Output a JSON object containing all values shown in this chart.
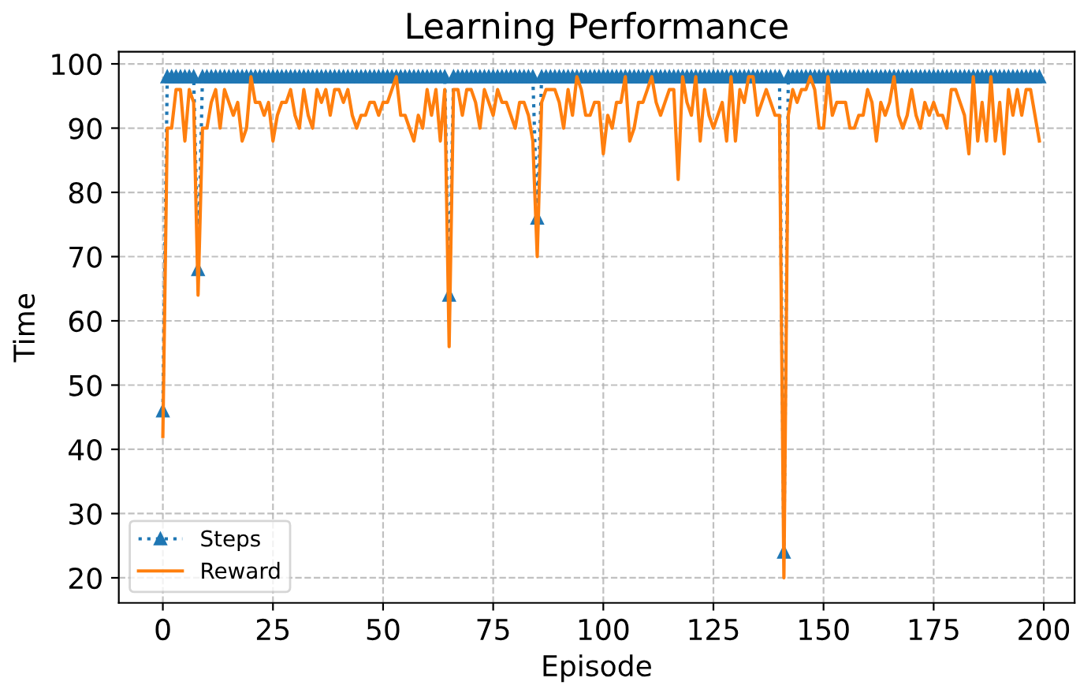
{
  "chart_data": {
    "type": "line",
    "title": "Learning Performance",
    "xlabel": "Episode",
    "ylabel": "Time",
    "x": [
      0,
      1,
      2,
      3,
      4,
      5,
      6,
      7,
      8,
      9,
      10,
      11,
      12,
      13,
      14,
      15,
      16,
      17,
      18,
      19,
      20,
      21,
      22,
      23,
      24,
      25,
      26,
      27,
      28,
      29,
      30,
      31,
      32,
      33,
      34,
      35,
      36,
      37,
      38,
      39,
      40,
      41,
      42,
      43,
      44,
      45,
      46,
      47,
      48,
      49,
      50,
      51,
      52,
      53,
      54,
      55,
      56,
      57,
      58,
      59,
      60,
      61,
      62,
      63,
      64,
      65,
      66,
      67,
      68,
      69,
      70,
      71,
      72,
      73,
      74,
      75,
      76,
      77,
      78,
      79,
      80,
      81,
      82,
      83,
      84,
      85,
      86,
      87,
      88,
      89,
      90,
      91,
      92,
      93,
      94,
      95,
      96,
      97,
      98,
      99,
      100,
      101,
      102,
      103,
      104,
      105,
      106,
      107,
      108,
      109,
      110,
      111,
      112,
      113,
      114,
      115,
      116,
      117,
      118,
      119,
      120,
      121,
      122,
      123,
      124,
      125,
      126,
      127,
      128,
      129,
      130,
      131,
      132,
      133,
      134,
      135,
      136,
      137,
      138,
      139,
      140,
      141,
      142,
      143,
      144,
      145,
      146,
      147,
      148,
      149,
      150,
      151,
      152,
      153,
      154,
      155,
      156,
      157,
      158,
      159,
      160,
      161,
      162,
      163,
      164,
      165,
      166,
      167,
      168,
      169,
      170,
      171,
      172,
      173,
      174,
      175,
      176,
      177,
      178,
      179,
      180,
      181,
      182,
      183,
      184,
      185,
      186,
      187,
      188,
      189,
      190,
      191,
      192,
      193,
      194,
      195,
      196,
      197,
      198,
      199
    ],
    "series": [
      {
        "name": "Steps",
        "color": "#1f77b4",
        "line_style": "dotted",
        "marker": "triangle",
        "values": [
          46,
          98,
          98,
          98,
          98,
          98,
          98,
          98,
          68,
          98,
          98,
          98,
          98,
          98,
          98,
          98,
          98,
          98,
          98,
          98,
          98,
          98,
          98,
          98,
          98,
          98,
          98,
          98,
          98,
          98,
          98,
          98,
          98,
          98,
          98,
          98,
          98,
          98,
          98,
          98,
          98,
          98,
          98,
          98,
          98,
          98,
          98,
          98,
          98,
          98,
          98,
          98,
          98,
          98,
          98,
          98,
          98,
          98,
          98,
          98,
          98,
          98,
          98,
          98,
          98,
          64,
          98,
          98,
          98,
          98,
          98,
          98,
          98,
          98,
          98,
          98,
          98,
          98,
          98,
          98,
          98,
          98,
          98,
          98,
          98,
          76,
          98,
          98,
          98,
          98,
          98,
          98,
          98,
          98,
          98,
          98,
          98,
          98,
          98,
          98,
          98,
          98,
          98,
          98,
          98,
          98,
          98,
          98,
          98,
          98,
          98,
          98,
          98,
          98,
          98,
          98,
          98,
          98,
          98,
          98,
          98,
          98,
          98,
          98,
          98,
          98,
          98,
          98,
          98,
          98,
          98,
          98,
          98,
          98,
          98,
          98,
          98,
          98,
          98,
          98,
          98,
          24,
          98,
          98,
          98,
          98,
          98,
          98,
          98,
          98,
          98,
          98,
          98,
          98,
          98,
          98,
          98,
          98,
          98,
          98,
          98,
          98,
          98,
          98,
          98,
          98,
          98,
          98,
          98,
          98,
          98,
          98,
          98,
          98,
          98,
          98,
          98,
          98,
          98,
          98,
          98,
          98,
          98,
          98,
          98,
          98,
          98,
          98,
          98,
          98,
          98,
          98,
          98,
          98,
          98,
          98,
          98,
          98,
          98,
          98
        ]
      },
      {
        "name": "Reward",
        "color": "#ff7f0e",
        "line_style": "solid",
        "marker": "none",
        "values": [
          42,
          90,
          90,
          96,
          96,
          88,
          96,
          94,
          64,
          90,
          90,
          94,
          96,
          90,
          96,
          94,
          92,
          94,
          88,
          90,
          98,
          94,
          94,
          92,
          94,
          88,
          92,
          94,
          94,
          96,
          92,
          90,
          96,
          92,
          90,
          96,
          94,
          96,
          92,
          96,
          96,
          94,
          96,
          92,
          90,
          92,
          92,
          94,
          94,
          92,
          94,
          94,
          96,
          98,
          92,
          92,
          90,
          88,
          92,
          90,
          96,
          92,
          96,
          88,
          96,
          56,
          96,
          96,
          92,
          96,
          96,
          94,
          90,
          96,
          94,
          92,
          96,
          94,
          94,
          92,
          90,
          94,
          94,
          92,
          88,
          70,
          94,
          96,
          96,
          96,
          94,
          90,
          96,
          92,
          98,
          96,
          92,
          92,
          94,
          94,
          86,
          92,
          90,
          94,
          94,
          98,
          88,
          90,
          94,
          94,
          96,
          98,
          94,
          92,
          94,
          96,
          96,
          82,
          98,
          94,
          92,
          98,
          88,
          96,
          92,
          90,
          92,
          94,
          88,
          98,
          88,
          96,
          94,
          98,
          98,
          92,
          94,
          96,
          94,
          92,
          92,
          20,
          92,
          96,
          94,
          96,
          96,
          98,
          96,
          90,
          90,
          98,
          92,
          94,
          94,
          94,
          90,
          90,
          92,
          92,
          96,
          94,
          88,
          94,
          92,
          94,
          98,
          92,
          90,
          92,
          96,
          92,
          90,
          94,
          92,
          94,
          92,
          92,
          90,
          96,
          96,
          94,
          92,
          86,
          98,
          88,
          94,
          88,
          98,
          88,
          94,
          86,
          96,
          92,
          96,
          92,
          96,
          96,
          92,
          88
        ]
      }
    ],
    "xlim": [
      -10,
      207
    ],
    "ylim": [
      16.1,
      101.9
    ],
    "xticks": [
      0,
      25,
      50,
      75,
      100,
      125,
      150,
      175,
      200
    ],
    "yticks": [
      20,
      30,
      40,
      50,
      60,
      70,
      80,
      90,
      100
    ],
    "grid": true,
    "legend": "bottom left"
  }
}
